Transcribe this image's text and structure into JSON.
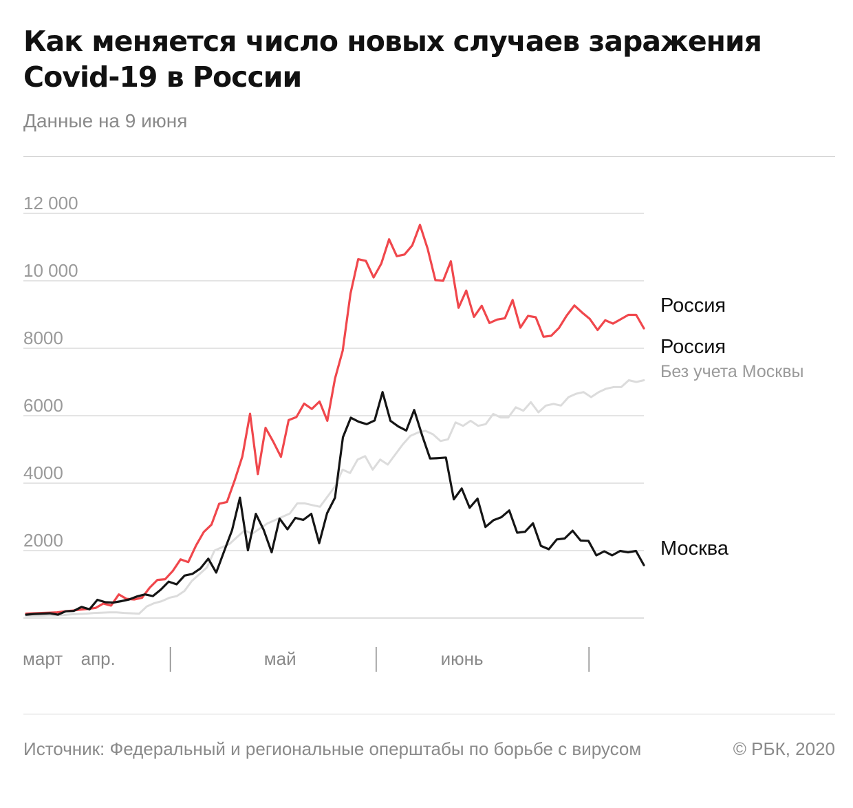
{
  "title": "Как меняется число новых случаев заражения Covid-19 в России",
  "subtitle": "Данные на 9 июня",
  "source": "Источник: Федеральный и региональные оперштабы по борьбе с вирусом",
  "copyright": "© РБК, 2020",
  "chart_data": {
    "type": "line",
    "x_axis": {
      "month_labels": [
        "март",
        "апр.",
        "май",
        "июнь"
      ],
      "start_date": "2020-03-11",
      "end_date": "2020-06-09"
    },
    "ylim": [
      0,
      12000
    ],
    "y_ticks": [
      2000,
      4000,
      6000,
      8000,
      10000,
      12000
    ],
    "y_tick_labels": [
      "2000",
      "4000",
      "6000",
      "8000",
      "10 000",
      "12 000"
    ],
    "grid": true,
    "series": [
      {
        "name": "Россия",
        "color": "#f0474c",
        "values": [
          130,
          140,
          150,
          160,
          170,
          200,
          220,
          250,
          270,
          300,
          430,
          370,
          700,
          570,
          550,
          600,
          900,
          1130,
          1150,
          1400,
          1740,
          1660,
          2150,
          2550,
          2770,
          3390,
          3440,
          4080,
          4790,
          6060,
          4270,
          5640,
          5230,
          4780,
          5870,
          5960,
          6360,
          6200,
          6420,
          5850,
          7100,
          7930,
          9620,
          10640,
          10590,
          10100,
          10510,
          11230,
          10730,
          10780,
          11050,
          11660,
          10950,
          10020,
          10000,
          10580,
          9200,
          9710,
          8930,
          9260,
          8750,
          8850,
          8890,
          9430,
          8610,
          8960,
          8920,
          8340,
          8370,
          8600,
          8970,
          9270,
          9060,
          8870,
          8540,
          8830,
          8730,
          8860,
          8990,
          8990,
          8590
        ]
      },
      {
        "name": "Россия",
        "subname": "Без учета Москвы",
        "color": "#dcdcdc",
        "values": [
          60,
          70,
          70,
          80,
          80,
          90,
          110,
          120,
          130,
          150,
          160,
          170,
          170,
          150,
          140,
          130,
          340,
          440,
          500,
          600,
          650,
          800,
          1100,
          1300,
          1500,
          2000,
          2100,
          2200,
          2400,
          2600,
          2500,
          2650,
          2800,
          2900,
          3000,
          3100,
          3400,
          3400,
          3350,
          3300,
          3600,
          3900,
          4400,
          4300,
          4700,
          4800,
          4400,
          4700,
          4550,
          4850,
          5150,
          5400,
          5500,
          5550,
          5450,
          5250,
          5300,
          5800,
          5700,
          5850,
          5700,
          5750,
          6050,
          5950,
          5950,
          6250,
          6150,
          6400,
          6100,
          6300,
          6350,
          6300,
          6550,
          6650,
          6700,
          6550,
          6700,
          6800,
          6850,
          6850,
          7050,
          7000,
          7050
        ]
      },
      {
        "name": "Москва",
        "color": "#151515",
        "values": [
          100,
          120,
          130,
          140,
          100,
          200,
          210,
          330,
          260,
          540,
          470,
          460,
          500,
          550,
          640,
          700,
          650,
          840,
          1080,
          1000,
          1260,
          1310,
          1470,
          1760,
          1350,
          1980,
          2600,
          3570,
          2010,
          3090,
          2610,
          1950,
          2950,
          2630,
          2970,
          2910,
          3090,
          2220,
          3110,
          3570,
          5360,
          5940,
          5820,
          5750,
          5860,
          6700,
          5850,
          5680,
          5560,
          6170,
          5420,
          4730,
          4740,
          4760,
          3520,
          3840,
          3270,
          3540,
          2700,
          2900,
          2990,
          3190,
          2530,
          2560,
          2810,
          2140,
          2040,
          2330,
          2360,
          2590,
          2300,
          2290,
          1860,
          1980,
          1860,
          1990,
          1950,
          1990,
          1570
        ]
      }
    ],
    "annotations": [
      {
        "series": 0,
        "text": "Россия"
      },
      {
        "series": 1,
        "text": "Россия",
        "subtext": "Без учета Москвы"
      },
      {
        "series": 2,
        "text": "Москва"
      }
    ]
  }
}
